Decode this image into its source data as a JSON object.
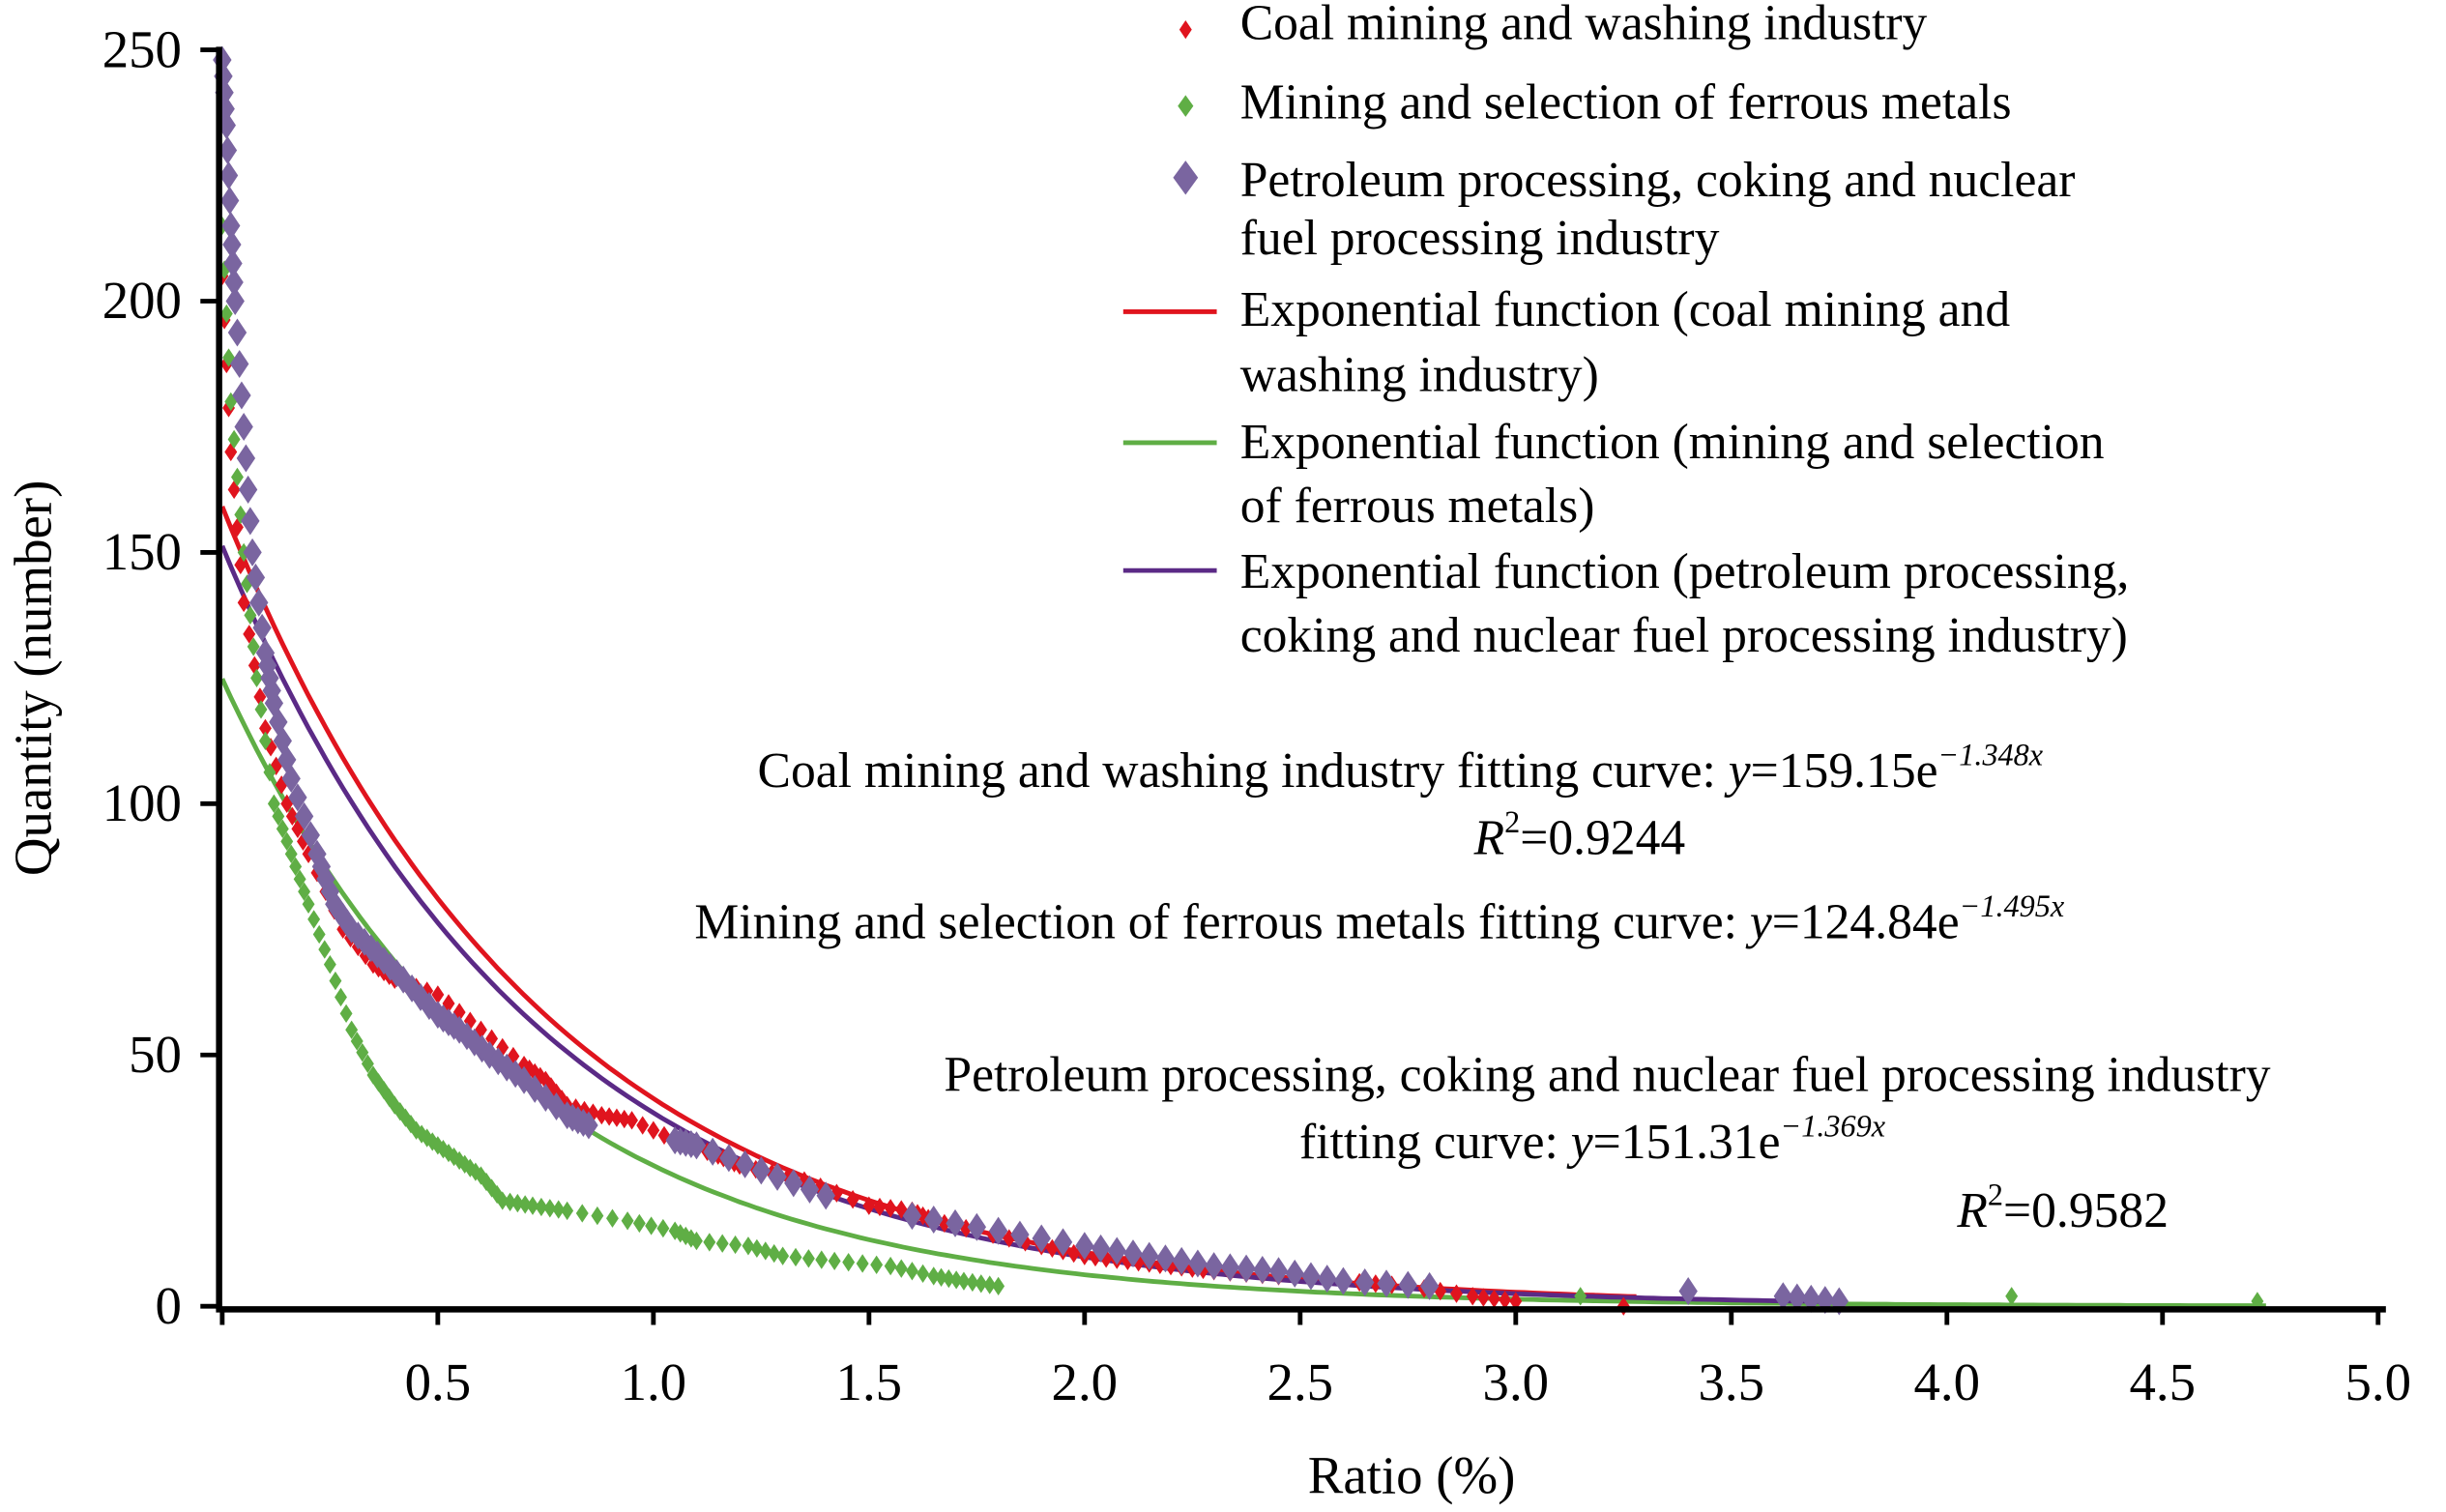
{
  "chart_data": {
    "type": "scatter",
    "xlabel": "Ratio (%)",
    "ylabel": "Quantity (number)",
    "xlim": [
      0,
      5.0
    ],
    "ylim": [
      0,
      250
    ],
    "x_ticks": [
      "0.5",
      "1.0",
      "1.5",
      "2.0",
      "2.5",
      "3.0",
      "3.5",
      "4.0",
      "4.5",
      "5.0"
    ],
    "x_tick_values": [
      0.5,
      1.0,
      1.5,
      2.0,
      2.5,
      3.0,
      3.5,
      4.0,
      4.5,
      5.0
    ],
    "y_ticks": [
      "0",
      "50",
      "100",
      "150",
      "200",
      "250"
    ],
    "y_tick_values": [
      0,
      50,
      100,
      150,
      200,
      250
    ],
    "grid": false,
    "legend_position": "top-right",
    "series": [
      {
        "name": "Coal mining and washing industry",
        "color": "#e0141e",
        "marker": "diamond-small",
        "x": [
          0.0,
          0.02,
          0.05,
          0.1,
          0.15,
          0.2,
          0.28,
          0.35,
          0.4,
          0.5,
          0.6,
          0.7,
          0.75,
          0.8,
          0.88,
          0.95,
          1.05,
          1.15,
          1.2,
          1.35,
          1.5,
          1.6,
          1.65,
          1.75,
          1.9,
          2.0,
          2.1,
          2.2,
          2.3,
          2.45,
          2.6,
          2.75,
          2.9,
          3.0,
          3.25
        ],
        "y": [
          205,
          170,
          140,
          115,
          100,
          90,
          75,
          68,
          65,
          62,
          55,
          48,
          45,
          40,
          38,
          37,
          33,
          30,
          28,
          25,
          20,
          19,
          17,
          15,
          12,
          10,
          9,
          8,
          7,
          6,
          5,
          4,
          2,
          1,
          0
        ]
      },
      {
        "name": "Mining and selection of ferrous metals",
        "color": "#5fae45",
        "marker": "diamond-small",
        "x": [
          0.0,
          0.02,
          0.05,
          0.08,
          0.12,
          0.16,
          0.2,
          0.25,
          0.3,
          0.35,
          0.4,
          0.45,
          0.5,
          0.55,
          0.6,
          0.65,
          0.72,
          0.8,
          0.94,
          1.05,
          1.1,
          1.22,
          1.3,
          1.42,
          1.55,
          1.65,
          1.72,
          1.8,
          3.15,
          4.15,
          4.72
        ],
        "y": [
          215,
          180,
          150,
          125,
          100,
          90,
          80,
          68,
          55,
          46,
          40,
          35,
          32,
          29,
          26,
          21,
          20,
          19,
          17,
          15,
          13,
          12,
          10,
          9,
          8,
          6,
          5,
          4,
          2,
          2,
          1
        ]
      },
      {
        "name": "Petroleum processing, coking and nuclear fuel processing industry",
        "color": "#7a65a0",
        "marker": "diamond-large",
        "x": [
          0.0,
          0.01,
          0.02,
          0.03,
          0.05,
          0.07,
          0.1,
          0.12,
          0.16,
          0.22,
          0.26,
          0.3,
          0.36,
          0.42,
          0.5,
          0.55,
          0.62,
          0.7,
          0.8,
          0.85,
          1.05,
          1.1,
          1.25,
          1.4,
          1.6,
          1.8,
          2.0,
          2.15,
          2.3,
          2.45,
          2.6,
          2.8,
          3.4,
          3.62,
          3.75
        ],
        "y": [
          248,
          235,
          215,
          200,
          175,
          150,
          130,
          120,
          105,
          90,
          80,
          75,
          70,
          65,
          58,
          55,
          50,
          45,
          38,
          36,
          33,
          32,
          27,
          22,
          18,
          15,
          12,
          10,
          8,
          7,
          5,
          4,
          3,
          2,
          1
        ]
      }
    ],
    "fits": [
      {
        "name": "Exponential function (coal mining and washing industry)",
        "color": "#e0141e",
        "a": 159.15,
        "b": -1.348,
        "xmax": 3.3,
        "label": [
          "Coal mining and washing industry fitting curve: ",
          "y",
          "=159.15e",
          "−1.348x"
        ],
        "r2": [
          "R",
          "2",
          "=0.9244"
        ]
      },
      {
        "name": "Exponential function (mining and selection of ferrous metals)",
        "color": "#5fae45",
        "a": 124.84,
        "b": -1.495,
        "xmax": 4.75,
        "label": [
          "Mining and selection of ferrous metals fitting curve: ",
          "y",
          "=124.84e",
          "−1.495x"
        ]
      },
      {
        "name": "Exponential function (petroleum processing, coking and nuclear fuel processing industry)",
        "color": "#5b2a86",
        "a": 151.31,
        "b": -1.369,
        "xmax": 3.75,
        "label1": "Petroleum processing, coking and nuclear fuel processing industry",
        "label": [
          "fitting curve: ",
          "y",
          "=151.31e",
          "−1.369x"
        ],
        "r2": [
          "R",
          "2",
          "=0.9582"
        ]
      }
    ],
    "legend": [
      [
        "Coal mining and washing industry"
      ],
      [
        "Mining and selection of ferrous metals"
      ],
      [
        "Petroleum processing, coking and nuclear",
        "fuel processing industry"
      ],
      [
        "Exponential function (coal mining and",
        "washing industry)"
      ],
      [
        "Exponential function (mining and selection",
        "of ferrous metals)"
      ],
      [
        "Exponential function (petroleum processing,",
        "coking and nuclear fuel processing industry)"
      ]
    ]
  }
}
